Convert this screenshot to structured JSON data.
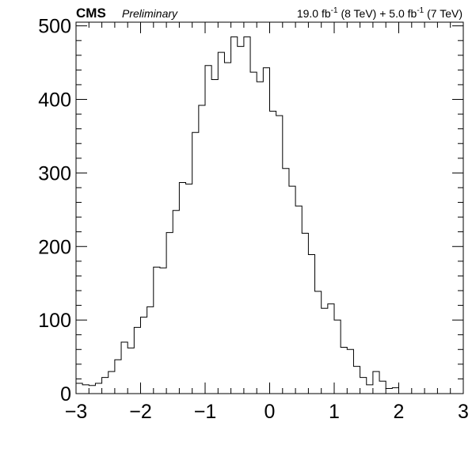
{
  "header": {
    "experiment": "CMS",
    "status": "Preliminary",
    "lumi_8tev_value": "19.0 fb",
    "lumi_8tev_exp": "-1",
    "lumi_8tev_energy": " (8 TeV) + 5.0 fb",
    "lumi_7tev_exp": "-1",
    "lumi_7tev_energy": " (7 TeV)"
  },
  "chart_data": {
    "type": "histogram",
    "title": "",
    "xlabel": "",
    "ylabel": "",
    "xlim": [
      -3,
      3
    ],
    "ylim": [
      0,
      505
    ],
    "grid": false,
    "bin_width": 0.1,
    "bin_edges_start": -3.0,
    "x_ticks": [
      -3,
      -2,
      -1,
      0,
      1,
      2,
      3
    ],
    "x_tick_labels": [
      "−3",
      "−2",
      "−1",
      "0",
      "1",
      "2",
      "3"
    ],
    "y_ticks": [
      0,
      100,
      200,
      300,
      400,
      500
    ],
    "y_tick_labels": [
      "0",
      "100",
      "200",
      "300",
      "400",
      "500"
    ],
    "line_color": "#000000",
    "values": [
      14,
      12,
      11,
      14,
      22,
      30,
      46,
      70,
      62,
      90,
      104,
      118,
      172,
      171,
      219,
      249,
      287,
      285,
      355,
      392,
      446,
      427,
      464,
      450,
      485,
      472,
      485,
      437,
      424,
      443,
      384,
      378,
      306,
      282,
      255,
      218,
      189,
      139,
      116,
      122,
      100,
      63,
      60,
      37,
      22,
      12,
      30,
      17,
      7,
      8
    ]
  }
}
